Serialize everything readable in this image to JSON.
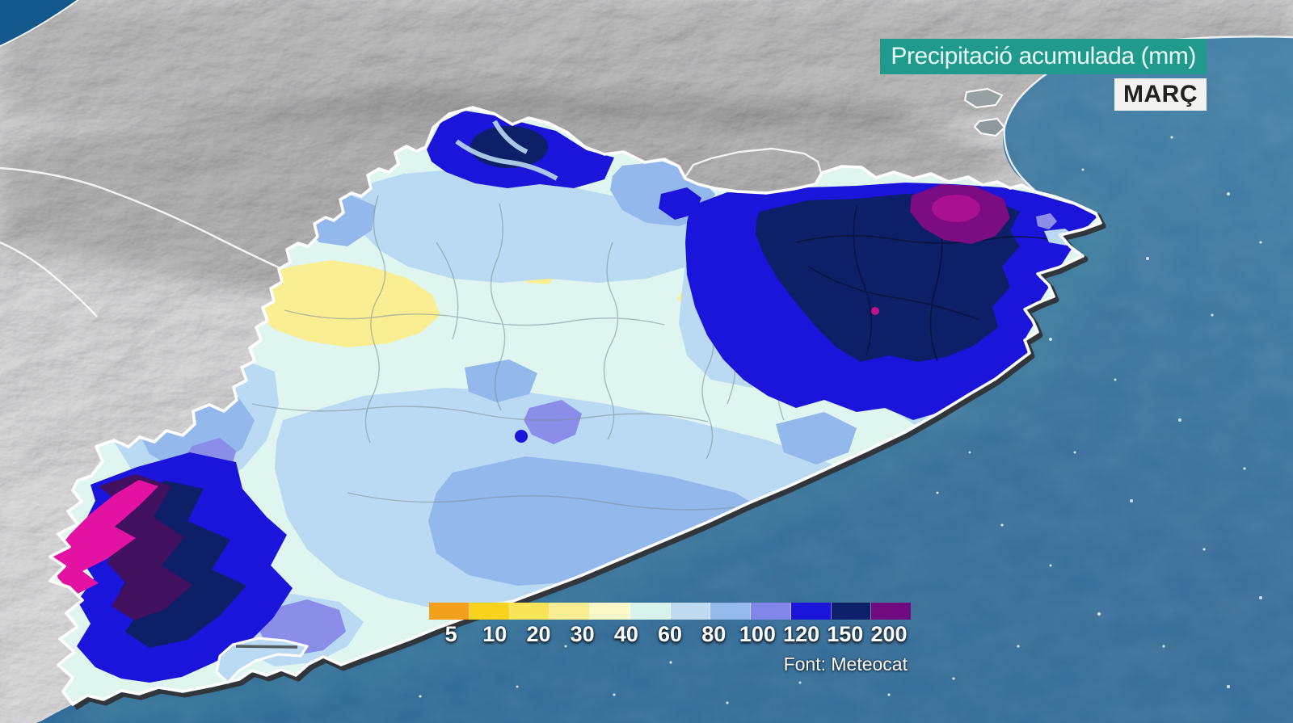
{
  "header": {
    "title": "Precipitació acumulada (mm)",
    "title_bg": "#1f9a8c",
    "title_color": "#eafdf8",
    "month": "MARÇ",
    "month_bg": "#f2f2f0",
    "month_color": "#23211e"
  },
  "legend": {
    "values": [
      "5",
      "10",
      "20",
      "30",
      "40",
      "60",
      "80",
      "100",
      "120",
      "150",
      "200"
    ],
    "colors": [
      "#f3a11c",
      "#f7d31e",
      "#f8e456",
      "#faee92",
      "#fdf8c8",
      "#d8f3ec",
      "#c0dbf0",
      "#93baeb",
      "#8286e8",
      "#1b15dc",
      "#0e2069",
      "#6f0b7f"
    ],
    "source": "Font: Meteocat"
  },
  "map_colors": {
    "sea": "#417ea6",
    "sea_deep": "#2e6b97",
    "sea_northwest": "#14598c",
    "terrain_gray": "#8a8a8a",
    "region_base": "#def5f0",
    "extreme_magenta": "#e312a2",
    "coast_outline": "#ffffff"
  }
}
